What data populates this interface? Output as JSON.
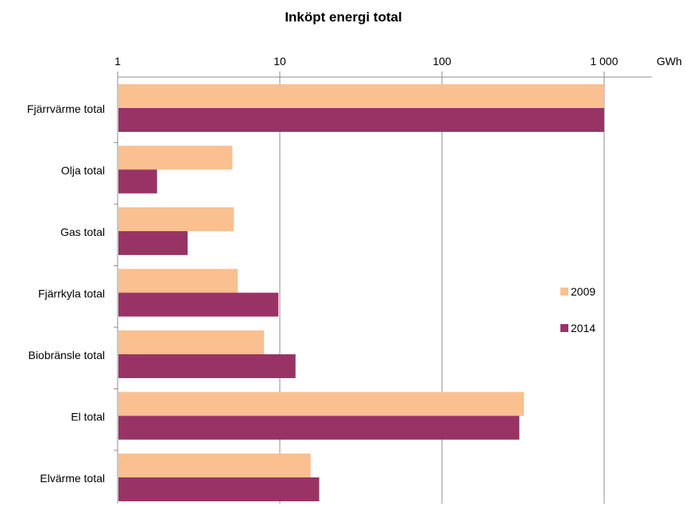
{
  "chart_data": {
    "type": "bar",
    "orientation": "horizontal",
    "title": "Inköpt energi total",
    "unit": "GWh",
    "x_scale": "log",
    "xlim": [
      1,
      1000
    ],
    "x_ticks": [
      1,
      10,
      100,
      1000
    ],
    "x_tick_labels": [
      "1",
      "10",
      "100",
      "1 000"
    ],
    "grid": true,
    "legend_position": "right",
    "categories": [
      "Fjärrvärme total",
      "Olja  total",
      "Gas total",
      "Fjärrkyla total",
      "Biobränsle total",
      "El total",
      "Elvärme total"
    ],
    "series": [
      {
        "name": "2009",
        "color": "#FAC090",
        "values": [
          1000,
          5.1,
          5.2,
          5.5,
          8.0,
          320,
          15.5
        ]
      },
      {
        "name": "2014",
        "color": "#993366",
        "values": [
          1000,
          1.75,
          2.7,
          9.8,
          12.5,
          300,
          17.5
        ]
      }
    ]
  }
}
